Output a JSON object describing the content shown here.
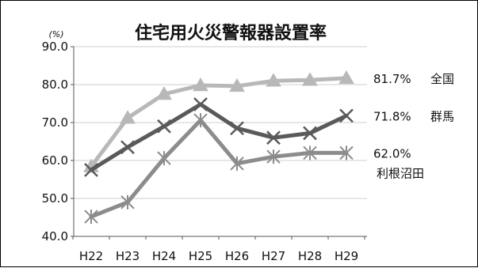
{
  "chart_data": {
    "type": "line",
    "title": "住宅用火災警報器設置率",
    "unit": "(%)",
    "categories": [
      "H22",
      "H23",
      "H24",
      "H25",
      "H26",
      "H27",
      "H28",
      "H29"
    ],
    "ylim": [
      40,
      90
    ],
    "yticks": [
      "40.0",
      "50.0",
      "60.0",
      "70.0",
      "80.0",
      "90.0"
    ],
    "grid": true,
    "series": [
      {
        "name": "全国",
        "end_label": "81.7%",
        "marker": "triangle",
        "color": "#b8b8b8",
        "values": [
          58.4,
          71.2,
          77.5,
          79.8,
          79.6,
          81.0,
          81.2,
          81.7
        ]
      },
      {
        "name": "群馬",
        "end_label": "71.8%",
        "marker": "x",
        "color": "#5a5a5a",
        "values": [
          57.5,
          63.5,
          69.0,
          74.8,
          68.5,
          66.0,
          67.2,
          71.8
        ]
      },
      {
        "name": "利根沼田",
        "end_label": "62.0%",
        "marker": "asterisk",
        "color": "#8c8c8c",
        "values": [
          45.2,
          49.0,
          60.6,
          70.6,
          59.2,
          61.0,
          62.0,
          62.0
        ]
      }
    ]
  }
}
